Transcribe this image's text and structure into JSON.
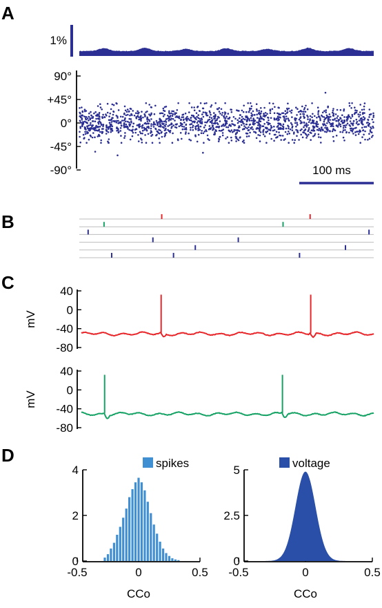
{
  "panels": {
    "a": "A",
    "b": "B",
    "c": "C",
    "d": "D"
  },
  "colors": {
    "dark_blue": "#2b2f93",
    "light_blue": "#3f8fd2",
    "hist_dark": "#2a4fa8",
    "red": "#e8262a",
    "green": "#15a264",
    "raster_line": "#bdbdbd"
  },
  "chart_data": [
    {
      "type": "area",
      "panel": "A",
      "scale_bar_label": "1%",
      "x_range_ms": [
        0,
        500
      ],
      "description_values": {
        "baseline_percent": 0.55,
        "peaks_percent": [
          0.85,
          0.9,
          0.8,
          0.85,
          0.8,
          0.9,
          0.85
        ]
      }
    },
    {
      "type": "scatter",
      "panel": "A",
      "ylim": [
        -90,
        90
      ],
      "yticks": [
        "90°",
        "+45°",
        "0°",
        "-45°",
        "-90°"
      ],
      "ytick_values": [
        90,
        45,
        0,
        -45,
        -90
      ],
      "x_range_ms": [
        0,
        500
      ],
      "scale_bar": {
        "label": "100 ms",
        "length_ms": 100
      },
      "n_points": 1500,
      "points_spread_deg": 30,
      "outliers": [
        {
          "x": 418,
          "y": 58
        },
        {
          "x": 27,
          "y": -55
        },
        {
          "x": 65,
          "y": -62
        },
        {
          "x": 210,
          "y": -57
        }
      ]
    },
    {
      "type": "scatter",
      "panel": "B",
      "rows": 6,
      "x_range_ms": [
        0,
        500
      ],
      "spikes": [
        {
          "row": 0,
          "color": "red",
          "times": [
            140,
            392
          ]
        },
        {
          "row": 1,
          "color": "green",
          "times": [
            42,
            346
          ]
        },
        {
          "row": 2,
          "color": "blue",
          "times": [
            15,
            492
          ]
        },
        {
          "row": 3,
          "color": "blue",
          "times": [
            125,
            270
          ]
        },
        {
          "row": 4,
          "color": "blue",
          "times": [
            197,
            452
          ]
        },
        {
          "row": 5,
          "color": "blue",
          "times": [
            55,
            160,
            374
          ]
        }
      ]
    },
    {
      "type": "line",
      "panel": "C",
      "ylabel": "mV",
      "ylim": [
        -80,
        40
      ],
      "yticks": [
        "40",
        "0",
        "-40",
        "-80"
      ],
      "ytick_values": [
        40,
        0,
        -40,
        -80
      ],
      "traces": [
        {
          "color": "red",
          "baseline_mv": -51,
          "spike_times_ms": [
            139,
            393
          ],
          "spike_peak_mv": 32
        },
        {
          "color": "green",
          "baseline_mv": -51,
          "spike_times_ms": [
            43,
            345
          ],
          "spike_peak_mv": 32
        }
      ]
    },
    {
      "type": "bar",
      "panel": "D",
      "legend": "spikes",
      "xlabel": "CCo",
      "xlim": [
        -0.5,
        0.5
      ],
      "xticks": [
        "-0.5",
        "0",
        "0.5"
      ],
      "xtick_values": [
        -0.5,
        0,
        0.5
      ],
      "ylim": [
        0,
        4
      ],
      "yticks": [
        "4",
        "2",
        "0"
      ],
      "ytick_values": [
        4,
        2,
        0
      ],
      "bin_centers": [
        -0.275,
        -0.25,
        -0.225,
        -0.2,
        -0.175,
        -0.15,
        -0.125,
        -0.1,
        -0.075,
        -0.05,
        -0.025,
        0.0,
        0.025,
        0.05,
        0.075,
        0.1,
        0.125,
        0.15,
        0.175,
        0.2,
        0.225,
        0.25,
        0.275,
        0.3,
        0.325
      ],
      "values": [
        0.15,
        0.3,
        0.55,
        0.8,
        1.15,
        1.5,
        1.9,
        2.3,
        2.8,
        3.15,
        3.45,
        3.65,
        3.45,
        3.1,
        2.6,
        2.1,
        1.6,
        1.2,
        0.85,
        0.55,
        0.35,
        0.22,
        0.12,
        0.07,
        0.04
      ]
    },
    {
      "type": "area",
      "panel": "D",
      "legend": "voltage",
      "xlabel": "CCo",
      "xlim": [
        -0.5,
        0.5
      ],
      "xticks": [
        "-0.5",
        "0",
        "0.5"
      ],
      "xtick_values": [
        -0.5,
        0,
        0.5
      ],
      "ylim": [
        0,
        5
      ],
      "yticks": [
        "5",
        "2.5",
        "0"
      ],
      "ytick_values": [
        5,
        2.5,
        0
      ],
      "distribution": {
        "mean": 0.0,
        "sd": 0.075,
        "peak": 4.9,
        "range": [
          -0.3,
          0.32
        ]
      }
    }
  ]
}
